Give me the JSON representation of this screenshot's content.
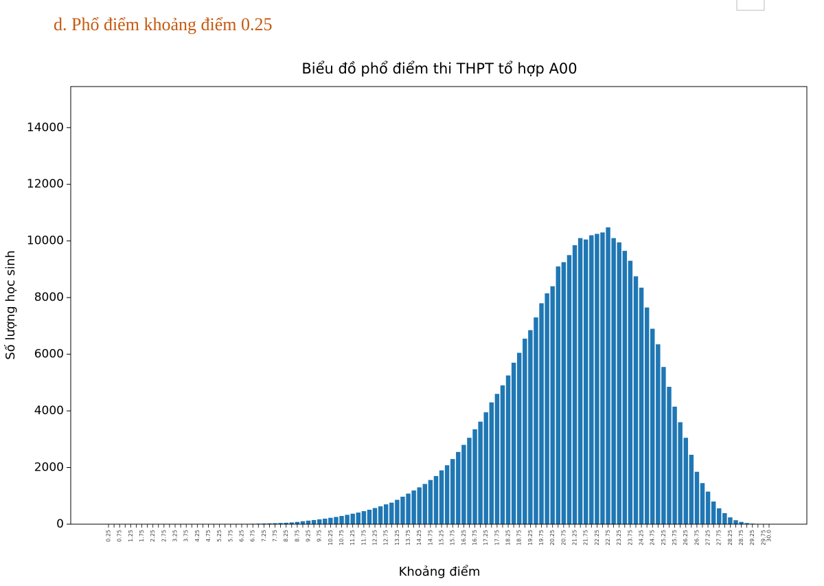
{
  "heading": "d.  Phổ điểm khoảng điểm 0.25",
  "chart_data": {
    "type": "bar",
    "title": "Biểu đồ phổ điểm thi THPT tổ hợp A00",
    "x_label": "Khoảng điểm",
    "y_label": "Số lượng học sinh",
    "color": "#1f77b4",
    "categories": [
      "0.25",
      null,
      "0.75",
      null,
      "1.25",
      null,
      "1.75",
      null,
      "2.25",
      null,
      "2.75",
      null,
      "3.25",
      null,
      "3.75",
      null,
      "4.25",
      null,
      "4.75",
      null,
      "5.25",
      null,
      "5.75",
      null,
      "6.25",
      null,
      "6.75",
      null,
      "7.25",
      null,
      "7.75",
      null,
      "8.25",
      null,
      "8.75",
      null,
      "9.25",
      null,
      "9.75",
      null,
      "10.25",
      null,
      "10.75",
      null,
      "11.25",
      null,
      "11.75",
      null,
      "12.25",
      null,
      "12.75",
      null,
      "13.25",
      null,
      "13.75",
      null,
      "14.25",
      null,
      "14.75",
      null,
      "15.25",
      null,
      "15.75",
      null,
      "16.25",
      null,
      "16.75",
      null,
      "17.25",
      null,
      "17.75",
      null,
      "18.25",
      null,
      "18.75",
      null,
      "19.25",
      null,
      "19.75",
      null,
      "20.25",
      null,
      "20.75",
      null,
      "21.25",
      null,
      "21.75",
      null,
      "22.25",
      null,
      "22.75",
      null,
      "23.25",
      null,
      "23.75",
      null,
      "24.25",
      null,
      "24.75",
      null,
      "25.25",
      null,
      "25.75",
      null,
      "26.25",
      null,
      "26.75",
      null,
      "27.25",
      null,
      "27.75",
      null,
      "28.25",
      null,
      "28.75",
      null,
      "29.25",
      null,
      "29.75",
      "30.0"
    ],
    "values": [
      0,
      0,
      0,
      0,
      0,
      0,
      0,
      0,
      0,
      0,
      0,
      0,
      0,
      0,
      0,
      0,
      0,
      0,
      0,
      0,
      2,
      3,
      4,
      6,
      8,
      11,
      15,
      19,
      24,
      29,
      35,
      42,
      50,
      62,
      80,
      105,
      125,
      145,
      170,
      195,
      225,
      255,
      290,
      330,
      370,
      410,
      460,
      510,
      570,
      630,
      700,
      760,
      860,
      970,
      1080,
      1190,
      1300,
      1420,
      1560,
      1700,
      1900,
      2080,
      2300,
      2550,
      2800,
      3050,
      3350,
      3620,
      3950,
      4300,
      4600,
      4900,
      5250,
      5700,
      6050,
      6550,
      6850,
      7300,
      7800,
      8150,
      8400,
      9100,
      9250,
      9500,
      9850,
      10100,
      10050,
      10200,
      10250,
      10300,
      10480,
      10100,
      9950,
      9650,
      9300,
      8750,
      8350,
      7650,
      6900,
      6350,
      5550,
      4850,
      4150,
      3600,
      3050,
      2450,
      1850,
      1450,
      1150,
      800,
      560,
      390,
      240,
      140,
      80,
      40,
      20,
      8,
      3,
      1
    ],
    "ylim": [
      0,
      15450
    ],
    "yticks": [
      0,
      2000,
      4000,
      6000,
      8000,
      10000,
      12000,
      14000
    ],
    "grid": false
  }
}
